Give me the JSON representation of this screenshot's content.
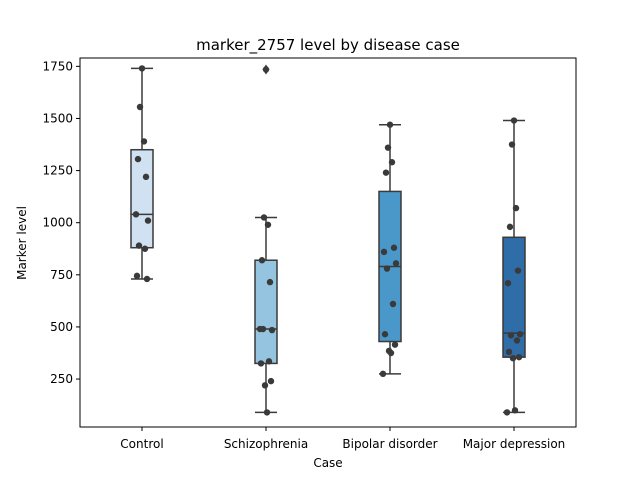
{
  "chart_data": {
    "type": "box",
    "title": "marker_2757 level by disease case",
    "xlabel": "Case",
    "ylabel": "Marker level",
    "ylim": [
      20,
      1790
    ],
    "yticks": [
      250,
      500,
      750,
      1000,
      1250,
      1500,
      1750
    ],
    "categories": [
      "Control",
      "Schizophrenia",
      "Bipolar disorder",
      "Major depression"
    ],
    "colors": [
      "#d0e1f2",
      "#94c4df",
      "#4a98c9",
      "#2e6da8"
    ],
    "boxes": [
      {
        "q1": 880,
        "median": 1040,
        "q3": 1350,
        "whisker_low": 730,
        "whisker_high": 1740,
        "outliers": []
      },
      {
        "q1": 325,
        "median": 490,
        "q3": 820,
        "whisker_low": 90,
        "whisker_high": 1025,
        "outliers": [
          1735
        ]
      },
      {
        "q1": 430,
        "median": 790,
        "q3": 1150,
        "whisker_low": 275,
        "whisker_high": 1470,
        "outliers": []
      },
      {
        "q1": 355,
        "median": 470,
        "q3": 930,
        "whisker_low": 90,
        "whisker_high": 1490,
        "outliers": []
      }
    ],
    "points": [
      [
        1740,
        1555,
        1390,
        1305,
        1220,
        1040,
        1010,
        890,
        875,
        745,
        730
      ],
      [
        1735,
        1025,
        990,
        820,
        715,
        490,
        485,
        490,
        335,
        325,
        240,
        220,
        90
      ],
      [
        1470,
        1360,
        1290,
        1240,
        880,
        860,
        805,
        780,
        610,
        465,
        415,
        385,
        375,
        275
      ],
      [
        1490,
        1375,
        1070,
        980,
        770,
        710,
        465,
        460,
        435,
        380,
        355,
        350,
        100,
        90
      ]
    ]
  }
}
